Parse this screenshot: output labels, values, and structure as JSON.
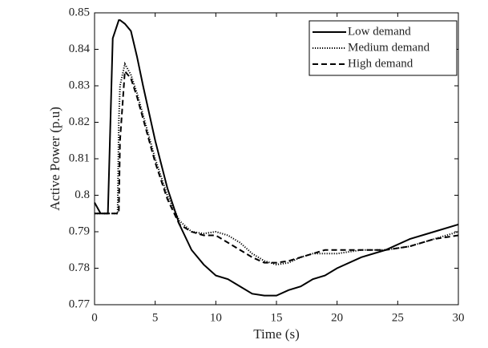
{
  "chart_data": {
    "type": "line",
    "x_label": "Time (s)",
    "y_label": "Active Power (p.u)",
    "x": [
      0,
      0.5,
      1,
      1.1,
      1.5,
      1.9,
      2,
      2.1,
      2.5,
      3,
      3.5,
      4,
      5,
      6,
      7,
      8,
      9,
      10,
      11,
      12,
      13,
      14,
      15,
      16,
      17,
      18,
      19,
      20,
      22,
      24,
      26,
      28,
      30
    ],
    "series": [
      {
        "name": "Low demand",
        "color": "#000000",
        "dash": "solid",
        "values": [
          0.798,
          0.795,
          0.795,
          0.795,
          0.843,
          0.847,
          0.848,
          0.848,
          0.847,
          0.845,
          0.838,
          0.83,
          0.815,
          0.802,
          0.792,
          0.785,
          0.781,
          0.778,
          0.777,
          0.775,
          0.773,
          0.7725,
          0.7725,
          0.774,
          0.775,
          0.777,
          0.778,
          0.78,
          0.783,
          0.785,
          0.788,
          0.79,
          0.792
        ]
      },
      {
        "name": "Medium demand",
        "color": "#000000",
        "dash": "dotted",
        "values": [
          0.795,
          0.795,
          0.795,
          0.795,
          0.795,
          0.795,
          0.82,
          0.83,
          0.836,
          0.833,
          0.828,
          0.822,
          0.81,
          0.8,
          0.793,
          0.79,
          0.7895,
          0.79,
          0.789,
          0.787,
          0.784,
          0.782,
          0.781,
          0.7815,
          0.783,
          0.784,
          0.784,
          0.784,
          0.785,
          0.785,
          0.786,
          0.788,
          0.79
        ]
      },
      {
        "name": "High demand",
        "color": "#000000",
        "dash": "dashed",
        "values": [
          0.795,
          0.795,
          0.795,
          0.795,
          0.795,
          0.795,
          0.795,
          0.815,
          0.834,
          0.832,
          0.827,
          0.821,
          0.809,
          0.799,
          0.792,
          0.79,
          0.789,
          0.789,
          0.787,
          0.785,
          0.783,
          0.7815,
          0.7815,
          0.782,
          0.783,
          0.784,
          0.785,
          0.785,
          0.785,
          0.785,
          0.786,
          0.788,
          0.789
        ]
      }
    ],
    "xlim": [
      0,
      30
    ],
    "xticks": [
      0,
      5,
      10,
      15,
      20,
      25,
      30
    ],
    "ylim": [
      0.77,
      0.85
    ],
    "yticks": [
      0.77,
      0.78,
      0.79,
      0.8,
      0.81,
      0.82,
      0.83,
      0.84,
      0.85
    ],
    "grid": false,
    "legend": "top-right"
  }
}
